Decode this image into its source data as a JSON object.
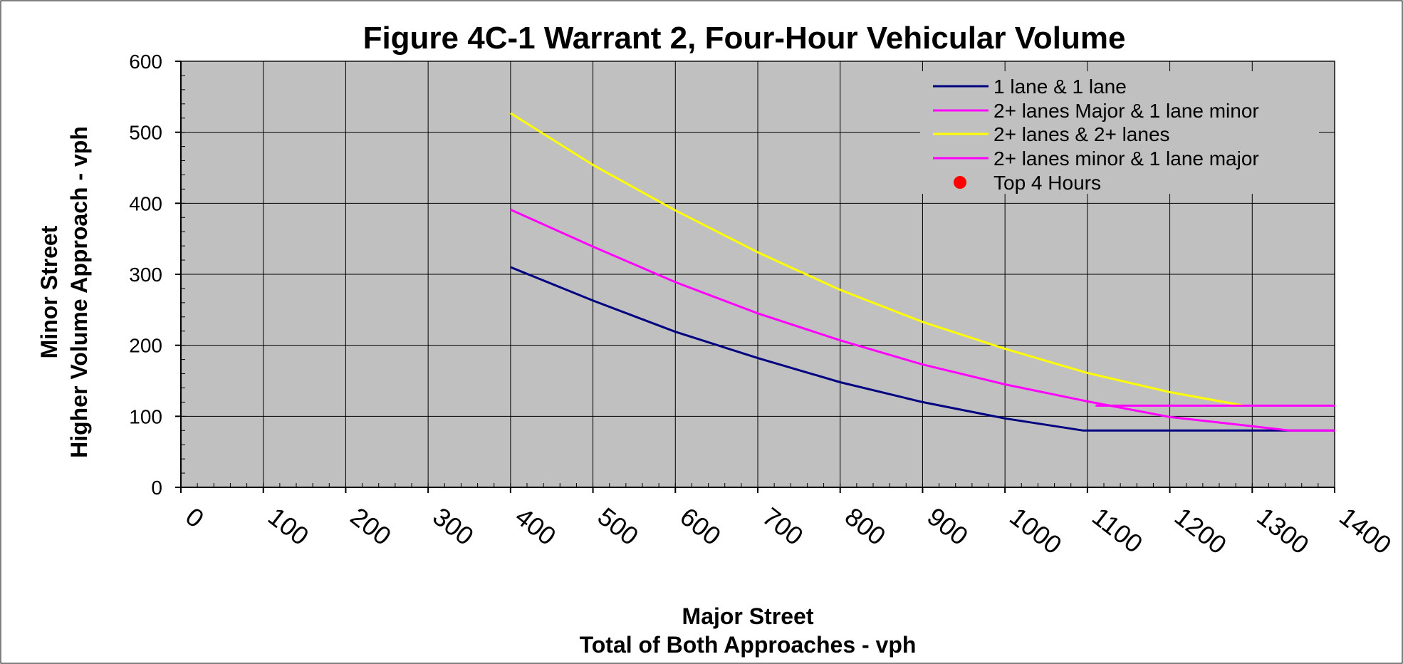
{
  "chart_data": {
    "type": "line",
    "title": "Figure 4C-1 Warrant 2, Four-Hour Vehicular Volume",
    "xlabel_lines": [
      "Major Street",
      "Total of Both Approaches - vph"
    ],
    "ylabel_lines": [
      "Minor Street",
      "Higher Volume Approach - vph"
    ],
    "xlim": [
      0,
      1400
    ],
    "ylim": [
      0,
      600
    ],
    "x_ticks": [
      "0",
      "100",
      "200",
      "300",
      "400",
      "500",
      "600",
      "700",
      "800",
      "900",
      "1000",
      "1100",
      "1200",
      "1300",
      "1400"
    ],
    "y_ticks": [
      "0",
      "100",
      "200",
      "300",
      "400",
      "500",
      "600"
    ],
    "grid": true,
    "legend_position": "top-right",
    "plot_background": "#c0c0c0",
    "series": [
      {
        "name": "1 lane & 1 lane",
        "color": "#000080",
        "x": [
          400,
          500,
          600,
          700,
          800,
          900,
          1000,
          1095,
          1400
        ],
        "y": [
          310,
          263,
          219,
          182,
          148,
          120,
          97,
          80,
          80
        ]
      },
      {
        "name": "2+ lanes Major & 1 lane minor",
        "color": "#ff00ff",
        "x": [
          400,
          500,
          600,
          700,
          800,
          900,
          1000,
          1100,
          1200,
          1300,
          1345,
          1400
        ],
        "y": [
          391,
          339,
          289,
          245,
          207,
          173,
          145,
          121,
          99,
          86,
          80,
          80
        ]
      },
      {
        "name": "2+ lanes & 2+ lanes",
        "color": "#ffff00",
        "x": [
          400,
          500,
          600,
          700,
          800,
          900,
          1000,
          1100,
          1200,
          1290
        ],
        "y": [
          527,
          454,
          390,
          331,
          278,
          233,
          195,
          161,
          134,
          115
        ]
      },
      {
        "name": "2+ lanes minor & 1 lane major",
        "color": "#ff00ff",
        "x": [
          1110,
          1400
        ],
        "y": [
          115,
          115
        ]
      },
      {
        "name": "Top 4 Hours",
        "color": "#ff0000",
        "marker": "circle",
        "x": [],
        "y": []
      }
    ]
  }
}
